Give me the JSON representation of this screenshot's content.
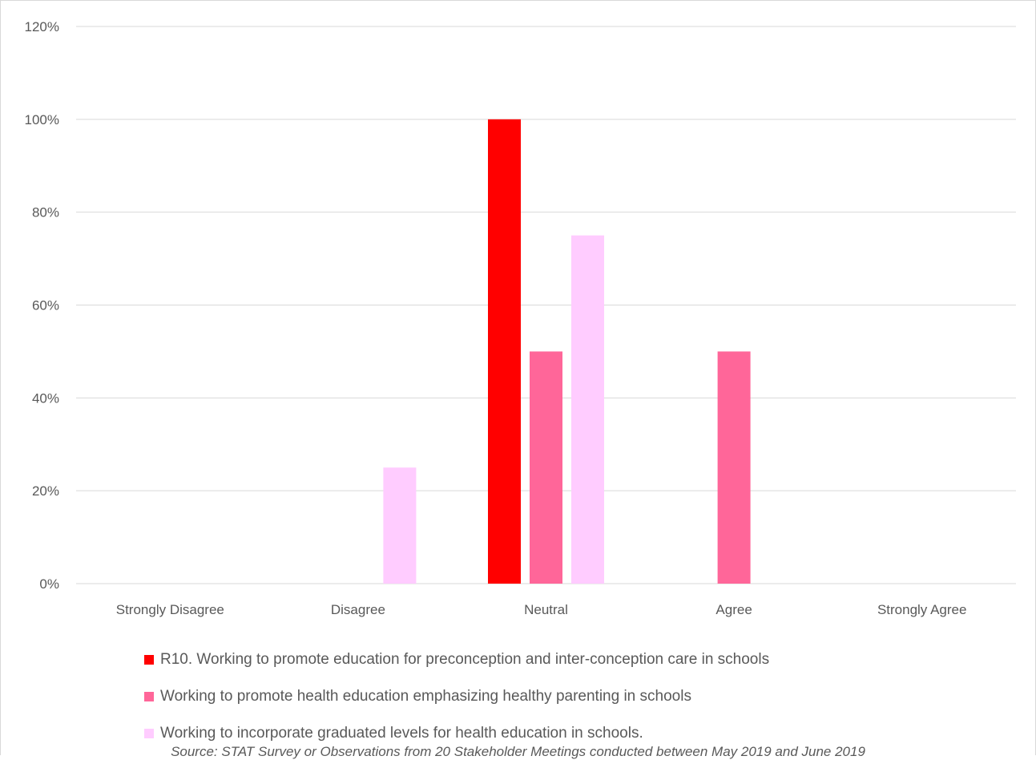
{
  "chart_data": {
    "type": "bar",
    "title": "",
    "xlabel": "",
    "ylabel": "",
    "categories": [
      "Strongly Disagree",
      "Disagree",
      "Neutral",
      "Agree",
      "Strongly Agree"
    ],
    "ylim": [
      0,
      120
    ],
    "yticks": [
      "0%",
      "20%",
      "40%",
      "60%",
      "80%",
      "100%",
      "120%"
    ],
    "ytick_values": [
      0,
      20,
      40,
      60,
      80,
      100,
      120
    ],
    "grid": true,
    "legend_position": "bottom",
    "series": [
      {
        "name": "R10. Working to promote education for preconception and inter-conception care in schools",
        "color": "#ff0000",
        "values": [
          0,
          0,
          100,
          0,
          0
        ]
      },
      {
        "name": "Working to promote health education emphasizing healthy parenting in schools",
        "color": "#ff6699",
        "values": [
          0,
          0,
          50,
          50,
          0
        ]
      },
      {
        "name": "Working to incorporate graduated levels for health education in schools.",
        "color": "#ffccff",
        "values": [
          0,
          25,
          75,
          0,
          0
        ]
      }
    ]
  },
  "source_note": "Source: STAT Survey or Observations from 20 Stakeholder Meetings conducted between May 2019 and June 2019"
}
